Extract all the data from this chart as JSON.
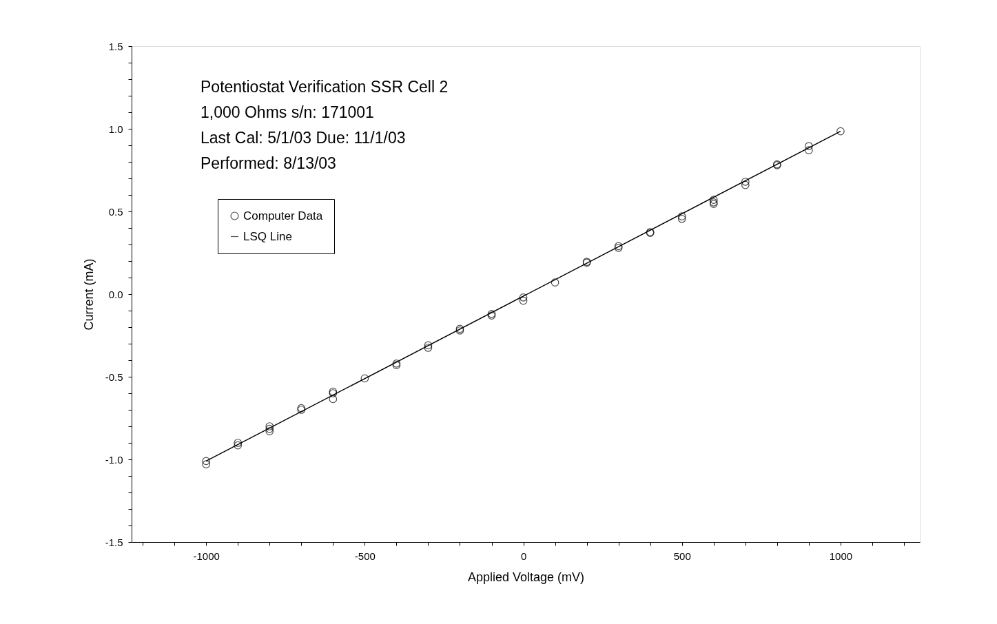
{
  "chart_data": {
    "type": "scatter",
    "title": "Potentiostat Verification SSR Cell 2",
    "annotations": [
      "1,000 Ohms s/n: 171001",
      "Last Cal: 5/1/03  Due: 11/1/03",
      "Performed: 8/13/03"
    ],
    "xlabel": "Applied Voltage (mV)",
    "ylabel": "Current (mA)",
    "x": [
      -1000,
      -1000,
      -900,
      -900,
      -800,
      -800,
      -800,
      -700,
      -700,
      -600,
      -600,
      -600,
      -500,
      -400,
      -400,
      -300,
      -300,
      -200,
      -200,
      -100,
      -100,
      0,
      0,
      100,
      200,
      200,
      300,
      300,
      400,
      400,
      500,
      500,
      600,
      600,
      600,
      700,
      700,
      800,
      800,
      900,
      900,
      1000
    ],
    "series": [
      {
        "name": "Computer Data",
        "type": "scatter",
        "color": "#000000",
        "marker": "circle",
        "values": [
          -1.01,
          -1.03,
          -0.9,
          -0.915,
          -0.8,
          -0.815,
          -0.83,
          -0.69,
          -0.7,
          -0.59,
          -0.6,
          -0.635,
          -0.51,
          -0.42,
          -0.43,
          -0.31,
          -0.325,
          -0.21,
          -0.22,
          -0.12,
          -0.13,
          -0.02,
          -0.04,
          0.07,
          0.195,
          0.19,
          0.29,
          0.28,
          0.375,
          0.37,
          0.47,
          0.455,
          0.57,
          0.555,
          0.545,
          0.68,
          0.66,
          0.785,
          0.78,
          0.895,
          0.87,
          0.985
        ]
      },
      {
        "name": "LSQ Line",
        "type": "line",
        "color": "#000000",
        "marker": "none",
        "line_style": "solid",
        "x": [
          -1000,
          1000
        ],
        "values": [
          -1.01,
          0.985
        ]
      }
    ],
    "xlim": [
      -1235,
      1250
    ],
    "xticks": [
      {
        "value": -1200,
        "label": null
      },
      {
        "value": -1100,
        "label": null
      },
      -1000,
      {
        "value": -900,
        "label": null
      },
      {
        "value": -800,
        "label": null
      },
      {
        "value": -700,
        "label": null
      },
      {
        "value": -600,
        "label": null
      },
      -500,
      {
        "value": -400,
        "label": null
      },
      {
        "value": -300,
        "label": null
      },
      {
        "value": -200,
        "label": null
      },
      {
        "value": -100,
        "label": null
      },
      0,
      {
        "value": 100,
        "label": null
      },
      {
        "value": 200,
        "label": null
      },
      {
        "value": 300,
        "label": null
      },
      {
        "value": 400,
        "label": null
      },
      500,
      {
        "value": 600,
        "label": null
      },
      {
        "value": 700,
        "label": null
      },
      {
        "value": 800,
        "label": null
      },
      {
        "value": 900,
        "label": null
      },
      1000,
      {
        "value": 1100,
        "label": null
      },
      {
        "value": 1200,
        "label": null
      }
    ],
    "ylim": [
      -1.5,
      1.5
    ],
    "yticks": [
      {
        "value": -1.5,
        "label": "-1.5"
      },
      {
        "value": -1.4,
        "label": null
      },
      {
        "value": -1.3,
        "label": null
      },
      {
        "value": -1.2,
        "label": null
      },
      {
        "value": -1.1,
        "label": null
      },
      {
        "value": -1,
        "label": "-1.0"
      },
      {
        "value": -0.9,
        "label": null
      },
      {
        "value": -0.8,
        "label": null
      },
      {
        "value": -0.7,
        "label": null
      },
      {
        "value": -0.6,
        "label": null
      },
      {
        "value": -0.5,
        "label": "-0.5"
      },
      {
        "value": -0.4,
        "label": null
      },
      {
        "value": -0.3,
        "label": null
      },
      {
        "value": -0.2,
        "label": null
      },
      {
        "value": -0.1,
        "label": null
      },
      {
        "value": 0,
        "label": "0.0"
      },
      {
        "value": 0.1,
        "label": null
      },
      {
        "value": 0.2,
        "label": null
      },
      {
        "value": 0.3,
        "label": null
      },
      {
        "value": 0.4,
        "label": null
      },
      {
        "value": 0.5,
        "label": "0.5"
      },
      {
        "value": 0.6,
        "label": null
      },
      {
        "value": 0.7,
        "label": null
      },
      {
        "value": 0.8,
        "label": null
      },
      {
        "value": 0.9,
        "label": null
      },
      {
        "value": 1,
        "label": "1.0"
      },
      {
        "value": 1.1,
        "label": null
      },
      {
        "value": 1.2,
        "label": null
      },
      {
        "value": 1.3,
        "label": null
      },
      {
        "value": 1.4,
        "label": null
      },
      {
        "value": 1.5,
        "label": "1.5"
      }
    ],
    "grid": false,
    "legend": "top left"
  }
}
